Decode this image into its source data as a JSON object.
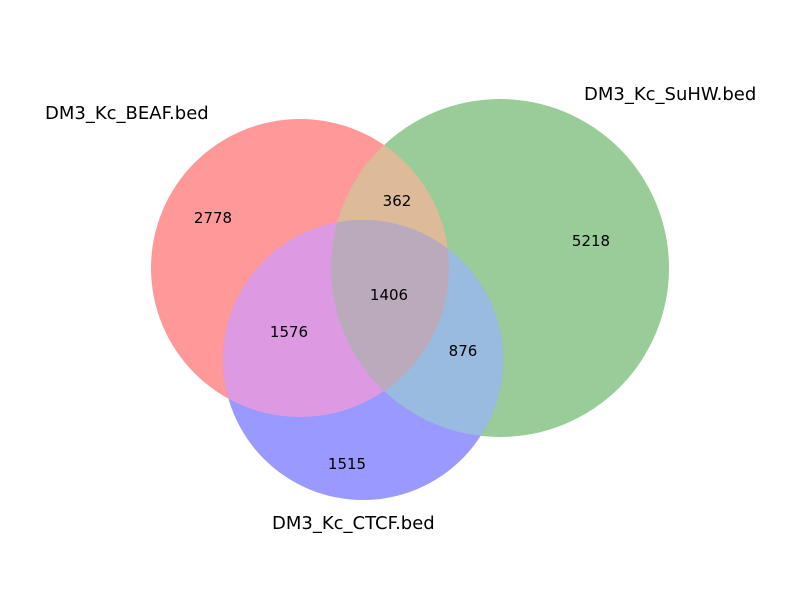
{
  "sets": [
    {
      "name": "DM3_Kc_BEAF.bed",
      "color": "#ff9999"
    },
    {
      "name": "DM3_Kc_SuHW.bed",
      "color": "#99cc99"
    },
    {
      "name": "DM3_Kc_CTCF.bed",
      "color": "#9999ff"
    }
  ],
  "regions": {
    "beaf_only": "2778",
    "suhw_only": "5218",
    "ctcf_only": "1515",
    "beaf_suhw": "362",
    "beaf_ctcf": "1576",
    "suhw_ctcf": "876",
    "all_three": "1406"
  },
  "colors": {
    "beaf_suhw": "#ddbb99",
    "beaf_ctcf": "#dd99e2",
    "suhw_ctcf": "#99bbe0",
    "all_three": "#bbaabb"
  }
}
